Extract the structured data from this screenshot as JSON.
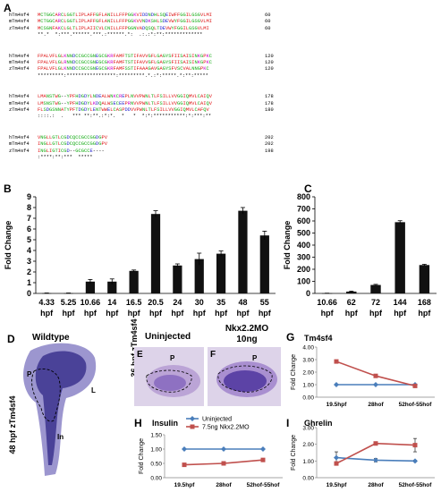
{
  "panel_labels": {
    "A": "A",
    "B": "B",
    "C": "C",
    "D": "D",
    "E": "E",
    "F": "F",
    "G": "G",
    "H": "H",
    "I": "I"
  },
  "alignment": {
    "blocks": [
      {
        "rows": [
          {
            "name": "hTm4sf4",
            "seq": "MCTGGCARCLGGTLIPLAFFGFLANILLFFPGGKVIDDNDHLSQEIWFFGGILGSGVLMI",
            "num": "60"
          },
          {
            "name": "mTm4sf4",
            "seq": "MCTGGCARCLGGTLIPLAFFGFLANILLFFPGGKVVNDKSHLSDEVWYFGGILGSGVLMI",
            "num": "60"
          },
          {
            "name": "zTm4sf4",
            "seq": "MCSGNFAKCLGLTLIPLAIICVLCNILLFFPGGNVADQSQLTDEVWYFGGILGSGVLMI",
            "num": "60"
          }
        ],
        "cons": "**.*  *:***.******.***.:******.*:  .:.:*:**:*************"
      },
      {
        "rows": [
          {
            "name": "hTm4sf4",
            "seq": "FPALVFLGLKNNDCCGCCGNEGCGKRFAMFTSTIFAVVGFLGAGYSFIISAISINKGPKC",
            "num": "120"
          },
          {
            "name": "mTm4sf4",
            "seq": "FPALVFLGLRNNDCCGCCGNEGCGKRFAMFTSTIFAVVGFLGAGYSFIISAISINKGPKC",
            "num": "120"
          },
          {
            "name": "zTm4sf4",
            "seq": "FPALVFLGLKNNDCCGCCGNEGCGKRFAMFSSTIFAAAGAVGAGYSFVSCVALNNGPKC",
            "num": "120"
          }
        ],
        "cons": "*********:*****************:*********.*.:*:*****.*:**:*****"
      },
      {
        "rows": [
          {
            "name": "hTm4sf4",
            "seq": "LMANSTWG--YPFHDGDYLNDEALWNKCREPLNVVPWNLTLFSILLVVGGIQMVLCAIQV",
            "num": "178"
          },
          {
            "name": "mTm4sf4",
            "seq": "LMSNSTWG--YPFHDGDYLKDQALWSECEEPRNVVPWNLTLFSILLVVGGIQMVLCAIQV",
            "num": "178"
          },
          {
            "name": "zTm4sf4",
            "seq": "FLSDGSNNATYPFTDGDYLENTWWELCASPDDVVPWNLTLFSILLVVGGIQMVLCAFQV",
            "num": "180"
          }
        ],
        "cons": "::::.:  .   *** **:**.:*:*.  *   *  *:*:***********:*:***:**"
      },
      {
        "rows": [
          {
            "name": "hTm4sf4",
            "seq": "VNGLLGTLCGDCQCCGCCGGDGPV",
            "num": "202"
          },
          {
            "name": "mTm4sf4",
            "seq": "INGLLGTLCGDCQCCGCCGGDGPV",
            "num": "202"
          },
          {
            "name": "zTm4sf4",
            "seq": "INGLIGTICGD--GCGCCE----",
            "num": "198"
          }
        ],
        "cons": ":****:**:***  *****"
      }
    ]
  },
  "chartB": {
    "chart_data": {
      "type": "bar",
      "categories": [
        "4.33 hpf",
        "5.25 hpf",
        "10.66 hpf",
        "14 hpf",
        "16.5 hpf",
        "20.5 hpf",
        "24 hpf",
        "30 hpf",
        "35 hpf",
        "48 hpf",
        "55 hpf"
      ],
      "cat_top": [
        "4.33",
        "5.25",
        "10.66",
        "14",
        "16.5",
        "20.5",
        "24",
        "30",
        "35",
        "48",
        "55"
      ],
      "cat_bottom": [
        "hpf",
        "hpf",
        "hpf",
        "hpf",
        "hpf",
        "hpf",
        "hpf",
        "hpf",
        "hpf",
        "hpf",
        "hpf"
      ],
      "values": [
        0.02,
        0.02,
        1.1,
        1.1,
        2.1,
        7.4,
        2.6,
        3.2,
        3.7,
        7.7,
        5.4
      ],
      "errors": [
        0.02,
        0.02,
        0.2,
        0.25,
        0.08,
        0.3,
        0.15,
        0.55,
        0.25,
        0.3,
        0.4
      ],
      "ylabel": "Fold Change",
      "ylim": [
        0,
        9
      ],
      "yticks": [
        "0",
        "1",
        "2",
        "3",
        "4",
        "5",
        "6",
        "7",
        "8",
        "9"
      ]
    }
  },
  "chartC": {
    "chart_data": {
      "type": "bar",
      "categories": [
        "10.66 hpf",
        "62 hpf",
        "72 hpf",
        "144 hpf",
        "168 hpf"
      ],
      "cat_top": [
        "10.66",
        "62",
        "72",
        "144",
        "168"
      ],
      "cat_bottom": [
        "hpf",
        "hpf",
        "hpf",
        "hpf",
        "hpf"
      ],
      "values": [
        1,
        15,
        70,
        590,
        235
      ],
      "errors": [
        1,
        4,
        5,
        12,
        6
      ],
      "ylabel": "Fold Change",
      "ylim": [
        0,
        800
      ],
      "yticks": [
        "0",
        "100",
        "200",
        "300",
        "400",
        "500",
        "600",
        "700",
        "800"
      ]
    }
  },
  "images": {
    "wildtype_title": "Wildtype",
    "wildtype_side": "48 hpf zTm4sf4",
    "label_P": "P",
    "label_L": "L",
    "label_In": "In",
    "uninjected_title": "Uninjected",
    "mo_title_1": "Nkx2.2MO",
    "mo_title_2": "10ng",
    "side_36": "36 hpf zTm4sf4"
  },
  "chartG": {
    "chart_data": {
      "type": "line",
      "title": "Tm4sf4",
      "categories": [
        "19.5hpf",
        "28hof",
        "52hof-55hof"
      ],
      "series": [
        {
          "name": "Uninjected",
          "values": [
            1.0,
            1.0,
            1.0
          ],
          "color": "#4a7ebb"
        },
        {
          "name": "7.5ng Nkx2.2MO",
          "values": [
            2.85,
            1.7,
            0.9
          ],
          "color": "#c0504d"
        }
      ],
      "ylabel": "Fold Change",
      "ylim": [
        0,
        4
      ],
      "yticks": [
        "0.00",
        "1.00",
        "2.00",
        "3.00",
        "4.00"
      ]
    }
  },
  "chartH": {
    "chart_data": {
      "type": "line",
      "title": "Insulin",
      "categories": [
        "19.5hpf",
        "28hof",
        "52hof-55hof"
      ],
      "series": [
        {
          "name": "Uninjected",
          "values": [
            1.0,
            1.0,
            1.0
          ],
          "color": "#4a7ebb"
        },
        {
          "name": "7.5ng Nkx2.2MO",
          "values": [
            0.45,
            0.5,
            0.62
          ],
          "color": "#c0504d"
        }
      ],
      "ylabel": "Fold Change",
      "ylim": [
        0,
        1.5
      ],
      "yticks": [
        "0.00",
        "0.50",
        "1.00",
        "1.50"
      ],
      "legend": [
        "Uninjected",
        "7.5ng Nkx2.2MO"
      ]
    }
  },
  "chartI": {
    "chart_data": {
      "type": "line",
      "title": "Ghrelin",
      "categories": [
        "19.5hpf",
        "28hof",
        "52hof-55hof"
      ],
      "series": [
        {
          "name": "Uninjected",
          "values": [
            1.2,
            1.05,
            1.0
          ],
          "color": "#4a7ebb"
        },
        {
          "name": "7.5ng Nkx2.2MO",
          "values": [
            0.85,
            2.05,
            1.95
          ],
          "color": "#c0504d"
        }
      ],
      "errors_red": [
        0.1,
        0.1,
        0.4
      ],
      "errors_blue": [
        0.35,
        0.1,
        0.05
      ],
      "ylabel": "Fold Change",
      "ylim": [
        0,
        3
      ],
      "yticks": [
        "0.00",
        "1.00",
        "2.00",
        "3.00"
      ]
    }
  },
  "colors": {
    "bar": "#111111",
    "blue": "#4a7ebb",
    "red": "#c0504d",
    "stain": "#3b2d9a"
  }
}
